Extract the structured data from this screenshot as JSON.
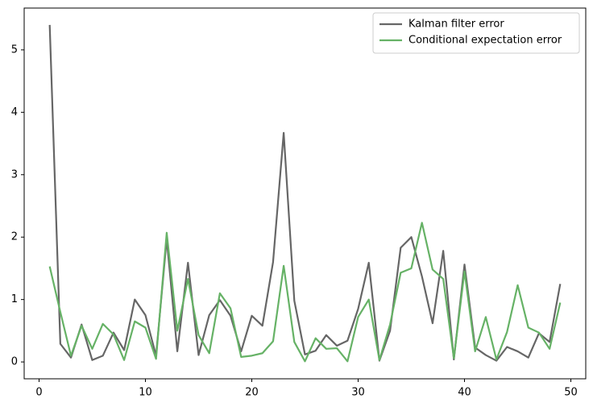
{
  "chart_data": {
    "type": "line",
    "x": [
      1,
      2,
      3,
      4,
      5,
      6,
      7,
      8,
      9,
      10,
      11,
      12,
      13,
      14,
      15,
      16,
      17,
      18,
      19,
      20,
      21,
      22,
      23,
      24,
      25,
      26,
      27,
      28,
      29,
      30,
      31,
      32,
      33,
      34,
      35,
      36,
      37,
      38,
      39,
      40,
      41,
      42,
      43,
      44,
      45,
      46,
      47,
      48,
      49
    ],
    "series": [
      {
        "name": "Kalman filter error",
        "color": "#666666",
        "values": [
          5.4,
          0.29,
          0.07,
          0.6,
          0.03,
          0.1,
          0.47,
          0.19,
          1.0,
          0.75,
          0.1,
          1.97,
          0.17,
          1.59,
          0.11,
          0.75,
          0.99,
          0.74,
          0.17,
          0.74,
          0.58,
          1.6,
          3.67,
          0.98,
          0.12,
          0.18,
          0.43,
          0.26,
          0.34,
          0.85,
          1.59,
          0.02,
          0.5,
          1.83,
          2.0,
          1.37,
          0.62,
          1.78,
          0.04,
          1.56,
          0.23,
          0.11,
          0.02,
          0.24,
          0.17,
          0.07,
          0.46,
          0.32,
          1.25
        ]
      },
      {
        "name": "Conditional expectation error",
        "color": "#66b266",
        "values": [
          1.53,
          0.8,
          0.1,
          0.58,
          0.21,
          0.61,
          0.44,
          0.03,
          0.65,
          0.55,
          0.05,
          2.07,
          0.5,
          1.33,
          0.43,
          0.14,
          1.1,
          0.86,
          0.08,
          0.1,
          0.14,
          0.33,
          1.54,
          0.32,
          0.01,
          0.38,
          0.21,
          0.22,
          0.01,
          0.72,
          1.0,
          0.03,
          0.6,
          1.43,
          1.5,
          2.23,
          1.48,
          1.33,
          0.06,
          1.45,
          0.17,
          0.72,
          0.04,
          0.48,
          1.23,
          0.55,
          0.47,
          0.21,
          0.95
        ]
      }
    ],
    "xlim": [
      -1.4,
      51.4
    ],
    "xticks": [
      0,
      10,
      20,
      30,
      40,
      50
    ],
    "ylim": [
      -0.27,
      5.67
    ],
    "yticks": [
      0,
      1,
      2,
      3,
      4,
      5
    ],
    "grid": false,
    "legend": "upper right"
  }
}
